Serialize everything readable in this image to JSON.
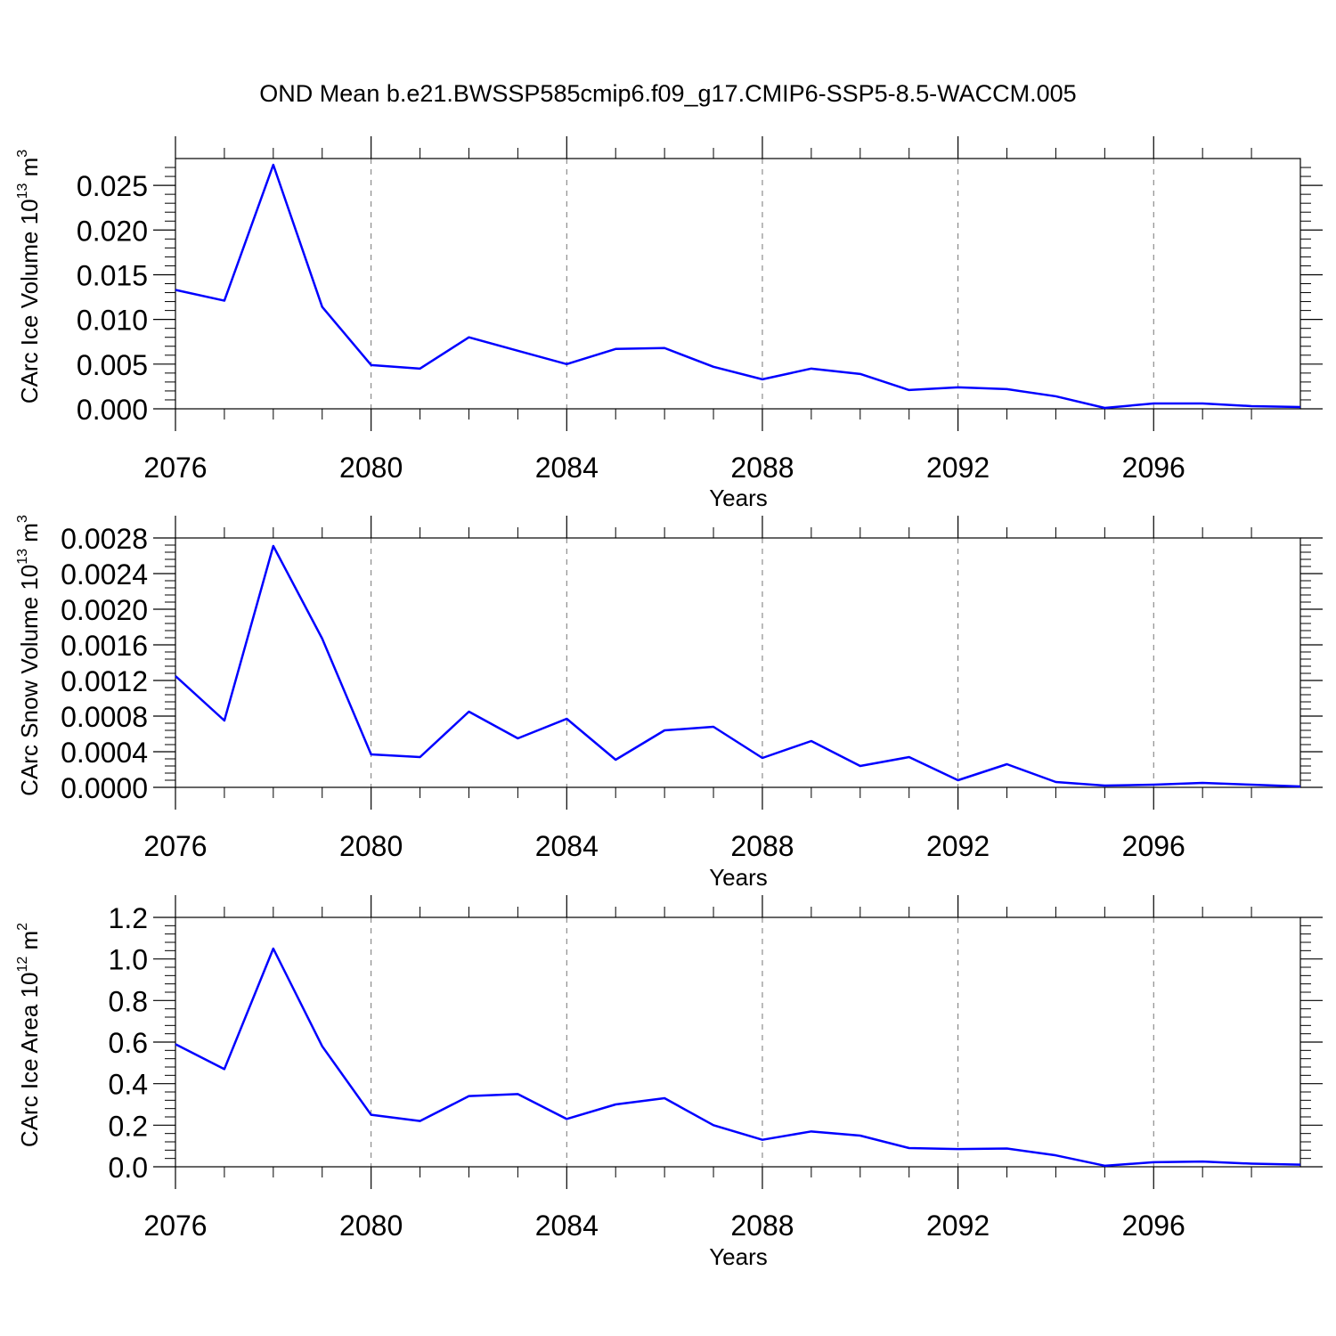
{
  "title": "OND Mean b.e21.BWSSP585cmip6.f09_g17.CMIP6-SSP5-8.5-WACCM.005",
  "chart_data": [
    {
      "type": "line",
      "xlabel": "Years",
      "ylabel": {
        "main": "CArc Ice Volume 10",
        "exp": "13",
        "unit": " m",
        "unit_exp": "3"
      },
      "xlim": [
        2076,
        2099
      ],
      "ylim": [
        0,
        0.028
      ],
      "xticks": [
        2076,
        2080,
        2084,
        2088,
        2092,
        2096
      ],
      "xtick_labels": [
        "2076",
        "2080",
        "2084",
        "2088",
        "2092",
        "2096"
      ],
      "yticks": [
        0,
        0.005,
        0.01,
        0.015,
        0.02,
        0.025
      ],
      "ytick_labels": [
        "0.000",
        "0.005",
        "0.010",
        "0.015",
        "0.020",
        "0.025"
      ],
      "grid": "vertical dashed at major x ticks",
      "color": "#0000ff",
      "x": [
        2076,
        2077,
        2078,
        2079,
        2080,
        2081,
        2082,
        2083,
        2084,
        2085,
        2086,
        2087,
        2088,
        2089,
        2090,
        2091,
        2092,
        2093,
        2094,
        2095,
        2096,
        2097,
        2098,
        2099
      ],
      "y": [
        0.0133,
        0.0121,
        0.0273,
        0.0114,
        0.0049,
        0.0045,
        0.008,
        0.0065,
        0.005,
        0.0067,
        0.0068,
        0.0047,
        0.0033,
        0.0045,
        0.0039,
        0.0021,
        0.0024,
        0.0022,
        0.0014,
        0.0001,
        0.0006,
        0.0006,
        0.0003,
        0.0002
      ]
    },
    {
      "type": "line",
      "xlabel": "Years",
      "ylabel": {
        "main": "CArc Snow Volume 10",
        "exp": "13",
        "unit": " m",
        "unit_exp": "3"
      },
      "xlim": [
        2076,
        2099
      ],
      "ylim": [
        0,
        0.0028
      ],
      "xticks": [
        2076,
        2080,
        2084,
        2088,
        2092,
        2096
      ],
      "xtick_labels": [
        "2076",
        "2080",
        "2084",
        "2088",
        "2092",
        "2096"
      ],
      "yticks": [
        0,
        0.0004,
        0.0008,
        0.0012,
        0.0016,
        0.002,
        0.0024,
        0.0028
      ],
      "ytick_labels": [
        "0.0000",
        "0.0004",
        "0.0008",
        "0.0012",
        "0.0016",
        "0.0020",
        "0.0024",
        "0.0028"
      ],
      "grid": "vertical dashed at major x ticks",
      "color": "#0000ff",
      "x": [
        2076,
        2077,
        2078,
        2079,
        2080,
        2081,
        2082,
        2083,
        2084,
        2085,
        2086,
        2087,
        2088,
        2089,
        2090,
        2091,
        2092,
        2093,
        2094,
        2095,
        2096,
        2097,
        2098,
        2099
      ],
      "y": [
        0.00125,
        0.00075,
        0.00271,
        0.00167,
        0.00037,
        0.00034,
        0.00085,
        0.00055,
        0.00077,
        0.00031,
        0.00064,
        0.00068,
        0.00033,
        0.00052,
        0.00024,
        0.00034,
        8e-05,
        0.00026,
        6e-05,
        2e-05,
        3e-05,
        5e-05,
        3e-05,
        1e-05
      ]
    },
    {
      "type": "line",
      "xlabel": "Years",
      "ylabel": {
        "main": "CArc Ice Area 10",
        "exp": "12",
        "unit": " m",
        "unit_exp": "2"
      },
      "xlim": [
        2076,
        2099
      ],
      "ylim": [
        0,
        1.2
      ],
      "xticks": [
        2076,
        2080,
        2084,
        2088,
        2092,
        2096
      ],
      "xtick_labels": [
        "2076",
        "2080",
        "2084",
        "2088",
        "2092",
        "2096"
      ],
      "yticks": [
        0,
        0.2,
        0.4,
        0.6,
        0.8,
        1.0,
        1.2
      ],
      "ytick_labels": [
        "0.0",
        "0.2",
        "0.4",
        "0.6",
        "0.8",
        "1.0",
        "1.2"
      ],
      "grid": "vertical dashed at major x ticks",
      "color": "#0000ff",
      "x": [
        2076,
        2077,
        2078,
        2079,
        2080,
        2081,
        2082,
        2083,
        2084,
        2085,
        2086,
        2087,
        2088,
        2089,
        2090,
        2091,
        2092,
        2093,
        2094,
        2095,
        2096,
        2097,
        2098,
        2099
      ],
      "y": [
        0.59,
        0.47,
        1.05,
        0.58,
        0.25,
        0.22,
        0.34,
        0.35,
        0.23,
        0.3,
        0.33,
        0.2,
        0.13,
        0.17,
        0.15,
        0.09,
        0.085,
        0.088,
        0.055,
        0.005,
        0.022,
        0.025,
        0.015,
        0.01
      ]
    }
  ]
}
